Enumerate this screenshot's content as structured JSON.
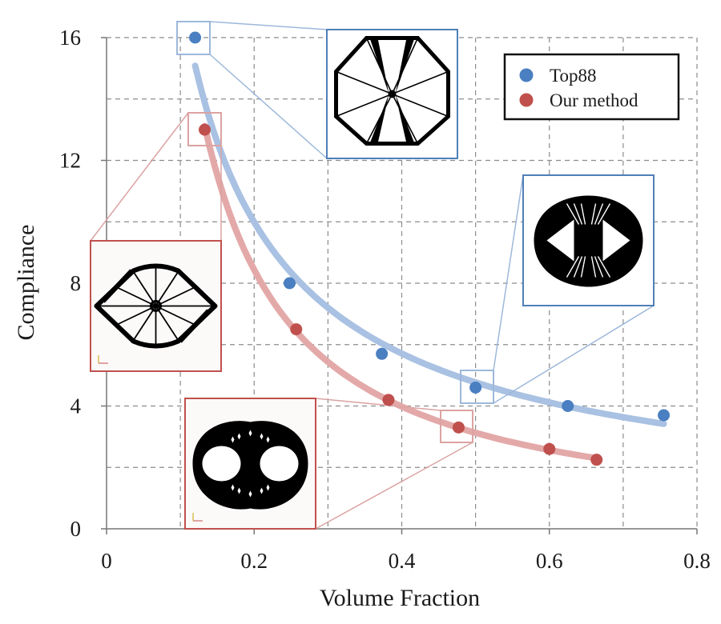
{
  "chart_data": {
    "type": "scatter",
    "xlabel": "Volume Fraction",
    "ylabel": "Compliance",
    "xlim": [
      0,
      0.8
    ],
    "ylim": [
      0,
      16
    ],
    "x_ticks": [
      "0",
      "0.2",
      "0.4",
      "0.6",
      "0.8"
    ],
    "y_ticks": [
      "0",
      "4",
      "8",
      "12",
      "16"
    ],
    "grid": true,
    "legend_position": "top-right",
    "series": [
      {
        "name": "Top88",
        "color": "#4a7fc1",
        "fit_color": "#a9c1e2",
        "x": [
          0.12,
          0.248,
          0.373,
          0.5,
          0.625,
          0.755
        ],
        "y": [
          16.0,
          8.0,
          5.7,
          4.6,
          4.0,
          3.7
        ]
      },
      {
        "name": "Our method",
        "color": "#c0504d",
        "fit_color": "#e3a9a8",
        "x": [
          0.133,
          0.257,
          0.382,
          0.477,
          0.6,
          0.664
        ],
        "y": [
          13.0,
          6.5,
          4.2,
          3.3,
          2.6,
          2.25
        ]
      }
    ],
    "annotations": [
      {
        "name": "Top88 design at volume fraction 0.12",
        "series": "Top88",
        "point_index": 0
      },
      {
        "name": "Top88 design at volume fraction 0.5",
        "series": "Top88",
        "point_index": 3
      },
      {
        "name": "Our method design at volume fraction 0.133",
        "series": "Our method",
        "point_index": 0
      },
      {
        "name": "Our method design at volume fraction 0.477",
        "series": "Our method",
        "point_index": 3
      }
    ]
  }
}
